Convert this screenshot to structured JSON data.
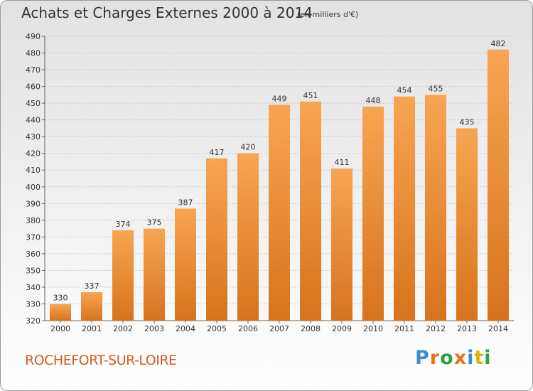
{
  "title": "Achats et Charges Externes 2000 à 2014",
  "subtitle": "(en milliers d'€)",
  "location": "ROCHEFORT-SUR-LOIRE",
  "logo": {
    "text": "Proxiti",
    "letter_colors": [
      "#3a8fd0",
      "#e8721c",
      "#2aa146",
      "#e8721c",
      "#3a8fd0",
      "#d9b400",
      "#2aa146"
    ]
  },
  "colors": {
    "bar_top": "#f7a552",
    "bar_bottom": "#d8731d",
    "grid": "#c8c8c8"
  },
  "chart_data": {
    "type": "bar",
    "categories": [
      "2000",
      "2001",
      "2002",
      "2003",
      "2004",
      "2005",
      "2006",
      "2007",
      "2008",
      "2009",
      "2010",
      "2011",
      "2012",
      "2013",
      "2014"
    ],
    "values": [
      330,
      337,
      374,
      375,
      387,
      417,
      420,
      449,
      451,
      411,
      448,
      454,
      455,
      435,
      482
    ],
    "ylim": [
      320,
      490
    ],
    "yticks": [
      320,
      330,
      340,
      350,
      360,
      370,
      380,
      390,
      400,
      410,
      420,
      430,
      440,
      450,
      460,
      470,
      480,
      490
    ],
    "grid": true,
    "data_labels": true
  }
}
